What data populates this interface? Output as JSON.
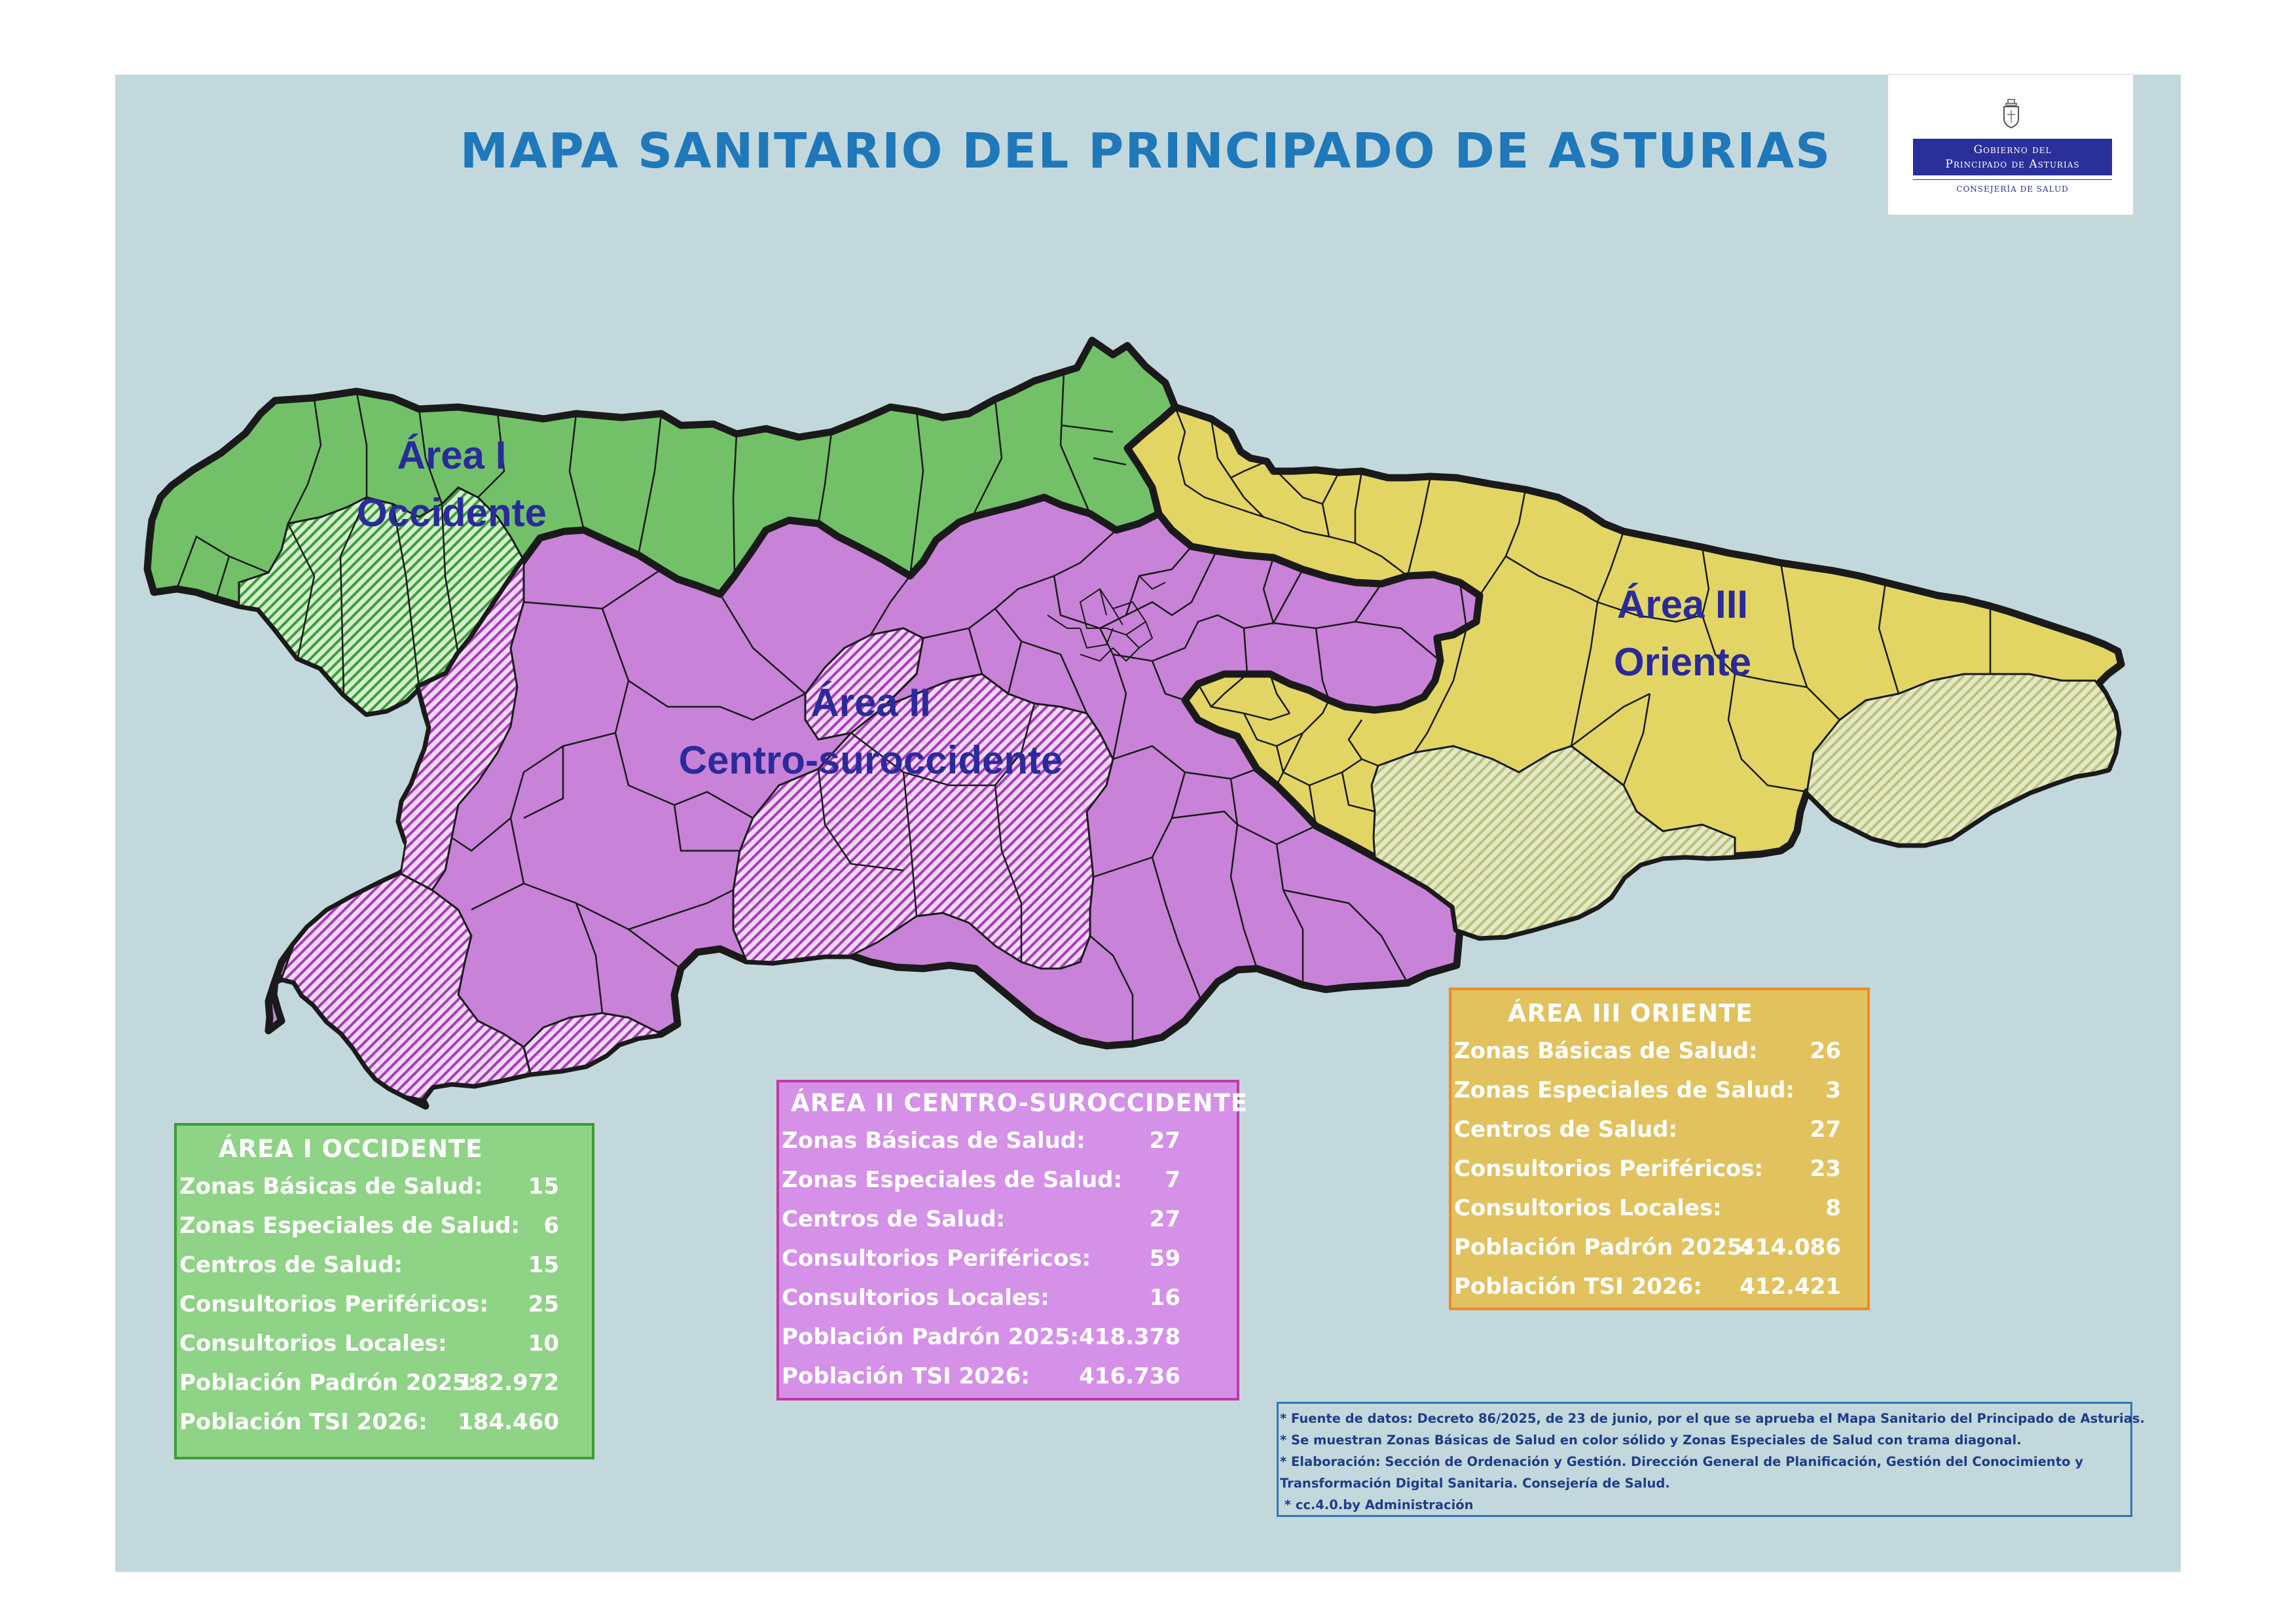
{
  "title": "MAPA SANITARIO DEL PRINCIPADO DE ASTURIAS",
  "logo": {
    "line1": "Gobierno del",
    "line2": "Principado de Asturias",
    "subline": "CONSEJERÍA DE SALUD"
  },
  "map": {
    "colors": {
      "background": "#c3d8dc",
      "area_occidente": "#72c168",
      "area_centro": "#c882d8",
      "area_oriente": "#e2d564",
      "oriente_special": "#ccd699",
      "border": "#1a1a1a",
      "label": "#2a2a9b"
    },
    "areas": [
      {
        "id": "area-i",
        "label_line1": "Área I",
        "label_line2": "Occidente"
      },
      {
        "id": "area-ii",
        "label_line1": "Área II",
        "label_line2": "Centro-suroccidente"
      },
      {
        "id": "area-iii",
        "label_line1": "Área III",
        "label_line2": "Oriente"
      }
    ]
  },
  "stats": {
    "area1": {
      "title": "ÁREA I OCCIDENTE",
      "rows": [
        {
          "label": "Zonas Básicas de Salud:",
          "value": "15"
        },
        {
          "label": "Zonas Especiales de Salud:",
          "value": "6"
        },
        {
          "label": "Centros de Salud:",
          "value": "15"
        },
        {
          "label": "Consultorios Periféricos:",
          "value": "25"
        },
        {
          "label": "Consultorios Locales:",
          "value": "10"
        },
        {
          "label": "Población Padrón 2025:",
          "value": "182.972"
        },
        {
          "label": "Población TSI 2026:",
          "value": "184.460"
        }
      ]
    },
    "area2": {
      "title": "ÁREA II CENTRO-SUROCCIDENTE",
      "rows": [
        {
          "label": "Zonas Básicas de Salud:",
          "value": "27"
        },
        {
          "label": "Zonas Especiales de Salud:",
          "value": "7"
        },
        {
          "label": "Centros de Salud:",
          "value": "27"
        },
        {
          "label": "Consultorios Periféricos:",
          "value": "59"
        },
        {
          "label": "Consultorios Locales:",
          "value": "16"
        },
        {
          "label": "Población Padrón 2025:",
          "value": "418.378"
        },
        {
          "label": "Población TSI 2026:",
          "value": "416.736"
        }
      ]
    },
    "area3": {
      "title": "ÁREA III ORIENTE",
      "rows": [
        {
          "label": "Zonas Básicas de Salud:",
          "value": "26"
        },
        {
          "label": "Zonas Especiales de Salud:",
          "value": "3"
        },
        {
          "label": "Centros de Salud:",
          "value": "27"
        },
        {
          "label": "Consultorios Periféricos:",
          "value": "23"
        },
        {
          "label": "Consultorios Locales:",
          "value": "8"
        },
        {
          "label": "Población Padrón 2025:",
          "value": "414.086"
        },
        {
          "label": "Población TSI 2026:",
          "value": "412.421"
        }
      ]
    }
  },
  "notes": [
    "* Fuente de datos: Decreto 86/2025, de 23 de junio, por el que se aprueba el Mapa Sanitario del Principado de Asturias.",
    "* Se muestran Zonas Básicas de Salud en color sólido y Zonas Especiales de Salud con trama diagonal.",
    "* Elaboración: Sección de Ordenación y Gestión. Dirección General de Planificación, Gestión del Conocimiento y",
    "Transformación Digital Sanitaria. Consejería de Salud.",
    " * cc.4.0.by Administración"
  ]
}
